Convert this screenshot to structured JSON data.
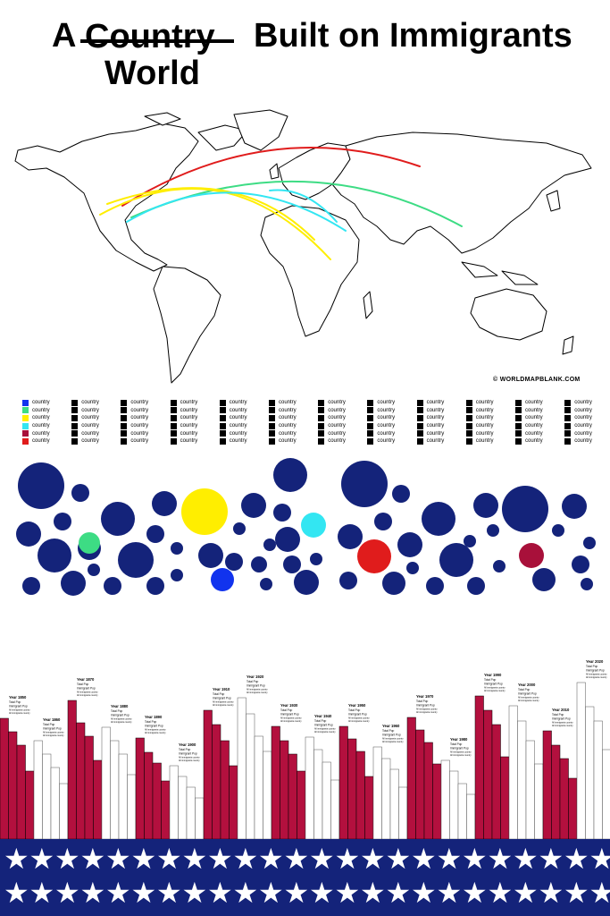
{
  "title": {
    "prefix": "A",
    "struck": "Country",
    "suffix": "Built on Immigrants",
    "replacement": "World"
  },
  "credit": "© WORLDMAPBLANK.COM",
  "colors": {
    "navy": "#14237a",
    "crimson": "#b3103e",
    "red": "#e01c1c",
    "yellow": "#ffee00",
    "cyan": "#33e6f2",
    "green": "#3ddc84",
    "blue": "#1133ee",
    "maroon": "#a8103a"
  },
  "legend": {
    "columns": [
      {
        "items": [
          {
            "label": "country",
            "color": "#1133ee"
          },
          {
            "label": "country",
            "color": "#3ddc84"
          },
          {
            "label": "country",
            "color": "#ffee00"
          },
          {
            "label": "country",
            "color": "#33e6f2"
          },
          {
            "label": "country",
            "color": "#a8103a"
          },
          {
            "label": "country",
            "color": "#e01c1c"
          }
        ]
      },
      {
        "items": [
          {
            "label": "country",
            "color": "#000"
          },
          {
            "label": "country",
            "color": "#000"
          },
          {
            "label": "country",
            "color": "#000"
          },
          {
            "label": "country",
            "color": "#000"
          },
          {
            "label": "country",
            "color": "#000"
          },
          {
            "label": "country",
            "color": "#000"
          }
        ]
      },
      {
        "items": [
          {
            "label": "country",
            "color": "#000"
          },
          {
            "label": "country",
            "color": "#000"
          },
          {
            "label": "country",
            "color": "#000"
          },
          {
            "label": "country",
            "color": "#000"
          },
          {
            "label": "country",
            "color": "#000"
          },
          {
            "label": "country",
            "color": "#000"
          }
        ]
      },
      {
        "items": [
          {
            "label": "country",
            "color": "#000"
          },
          {
            "label": "country",
            "color": "#000"
          },
          {
            "label": "country",
            "color": "#000"
          },
          {
            "label": "country",
            "color": "#000"
          },
          {
            "label": "country",
            "color": "#000"
          },
          {
            "label": "country",
            "color": "#000"
          }
        ]
      },
      {
        "items": [
          {
            "label": "country",
            "color": "#000"
          },
          {
            "label": "country",
            "color": "#000"
          },
          {
            "label": "country",
            "color": "#000"
          },
          {
            "label": "country",
            "color": "#000"
          },
          {
            "label": "country",
            "color": "#000"
          },
          {
            "label": "country",
            "color": "#000"
          }
        ]
      },
      {
        "items": [
          {
            "label": "country",
            "color": "#000"
          },
          {
            "label": "country",
            "color": "#000"
          },
          {
            "label": "country",
            "color": "#000"
          },
          {
            "label": "country",
            "color": "#000"
          },
          {
            "label": "country",
            "color": "#000"
          },
          {
            "label": "country",
            "color": "#000"
          }
        ]
      },
      {
        "items": [
          {
            "label": "country",
            "color": "#000"
          },
          {
            "label": "country",
            "color": "#000"
          },
          {
            "label": "country",
            "color": "#000"
          },
          {
            "label": "country",
            "color": "#000"
          },
          {
            "label": "country",
            "color": "#000"
          },
          {
            "label": "country",
            "color": "#000"
          }
        ]
      },
      {
        "items": [
          {
            "label": "country",
            "color": "#000"
          },
          {
            "label": "country",
            "color": "#000"
          },
          {
            "label": "country",
            "color": "#000"
          },
          {
            "label": "country",
            "color": "#000"
          },
          {
            "label": "country",
            "color": "#000"
          },
          {
            "label": "country",
            "color": "#000"
          }
        ]
      },
      {
        "items": [
          {
            "label": "country",
            "color": "#000"
          },
          {
            "label": "country",
            "color": "#000"
          },
          {
            "label": "country",
            "color": "#000"
          },
          {
            "label": "country",
            "color": "#000"
          },
          {
            "label": "country",
            "color": "#000"
          },
          {
            "label": "country",
            "color": "#000"
          }
        ]
      },
      {
        "items": [
          {
            "label": "country",
            "color": "#000"
          },
          {
            "label": "country",
            "color": "#000"
          },
          {
            "label": "country",
            "color": "#000"
          },
          {
            "label": "country",
            "color": "#000"
          },
          {
            "label": "country",
            "color": "#000"
          },
          {
            "label": "country",
            "color": "#000"
          }
        ]
      },
      {
        "items": [
          {
            "label": "country",
            "color": "#000"
          },
          {
            "label": "country",
            "color": "#000"
          },
          {
            "label": "country",
            "color": "#000"
          },
          {
            "label": "country",
            "color": "#000"
          },
          {
            "label": "country",
            "color": "#000"
          },
          {
            "label": "country",
            "color": "#000"
          }
        ]
      },
      {
        "items": [
          {
            "label": "country",
            "color": "#000"
          },
          {
            "label": "country",
            "color": "#000"
          },
          {
            "label": "country",
            "color": "#000"
          },
          {
            "label": "country",
            "color": "#000"
          },
          {
            "label": "country",
            "color": "#000"
          },
          {
            "label": "country",
            "color": "#000"
          }
        ]
      }
    ]
  },
  "bar_groups": [
    {
      "year": "Year 1850",
      "line1": "Total Pop",
      "line2": "Immigrant Pop",
      "note": "All immigrants country"
    },
    {
      "year": "Year 1860",
      "line1": "Total Pop",
      "line2": "Immigrant Pop",
      "note": "All immigrants country"
    },
    {
      "year": "Year 1870",
      "line1": "Total Pop",
      "line2": "Immigrant Pop",
      "note": "All immigrants country"
    },
    {
      "year": "Year 1880",
      "line1": "Total Pop",
      "line2": "Immigrant Pop",
      "note": "All immigrants country"
    },
    {
      "year": "Year 1890",
      "line1": "Total Pop",
      "line2": "Immigrant Pop",
      "note": "All immigrants country"
    },
    {
      "year": "Year 1900",
      "line1": "Total Pop",
      "line2": "Immigrant Pop",
      "note": "All immigrants country"
    },
    {
      "year": "Year 1910",
      "line1": "Total Pop",
      "line2": "Immigrant Pop",
      "note": "All immigrants country"
    },
    {
      "year": "Year 1920",
      "line1": "Total Pop",
      "line2": "Immigrant Pop",
      "note": "All immigrants country"
    },
    {
      "year": "Year 1930",
      "line1": "Total Pop",
      "line2": "Immigrant Pop",
      "note": "All immigrants country"
    },
    {
      "year": "Year 1940",
      "line1": "Total Pop",
      "line2": "Immigrant Pop",
      "note": "All immigrants country"
    },
    {
      "year": "Year 1950",
      "line1": "Total Pop",
      "line2": "Immigrant Pop",
      "note": "All immigrants country"
    },
    {
      "year": "Year 1960",
      "line1": "Total Pop",
      "line2": "Immigrant Pop",
      "note": "All immigrants country"
    },
    {
      "year": "Year 1970",
      "line1": "Total Pop",
      "line2": "Immigrant Pop",
      "note": "All immigrants country"
    },
    {
      "year": "Year 1980",
      "line1": "Total Pop",
      "line2": "Immigrant Pop",
      "note": "All immigrants country"
    },
    {
      "year": "Year 1990",
      "line1": "Total Pop",
      "line2": "Immigrant Pop",
      "note": "All immigrants country"
    },
    {
      "year": "Year 2000",
      "line1": "Total Pop",
      "line2": "Immigrant Pop",
      "note": "All immigrants country"
    },
    {
      "year": "Year 2010",
      "line1": "Total Pop",
      "line2": "Immigrant Pop",
      "note": "All immigrants country"
    },
    {
      "year": "Year 2020",
      "line1": "Total Pop",
      "line2": "Immigrant Pop",
      "note": "All immigrants country"
    }
  ],
  "star_glyph": "★"
}
